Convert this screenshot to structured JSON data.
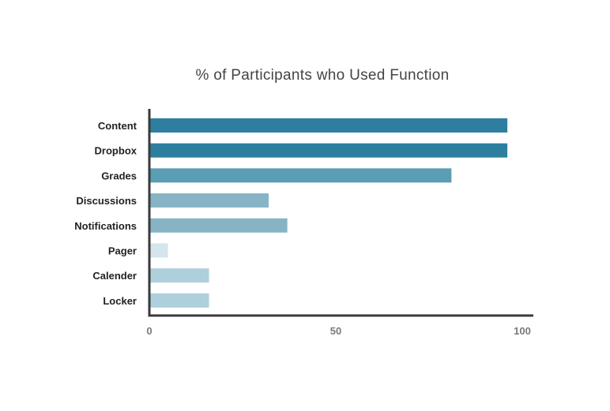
{
  "chart_data": {
    "type": "bar",
    "orientation": "horizontal",
    "title": "% of Participants who Used Function",
    "xlabel": "",
    "ylabel": "",
    "categories": [
      "Content",
      "Dropbox",
      "Grades",
      "Discussions",
      "Notifications",
      "Pager",
      "Calender",
      "Locker"
    ],
    "values": [
      96,
      96,
      81,
      32,
      37,
      5,
      16,
      16
    ],
    "bar_colors": [
      "#2e7f9f",
      "#2e7f9f",
      "#5a9db4",
      "#86b4c5",
      "#86b4c5",
      "#d4e5ec",
      "#aecfdc",
      "#aecfdc"
    ],
    "xlim": [
      0,
      100
    ],
    "xticks": [
      0,
      50,
      100
    ],
    "xtick_labels": [
      "0",
      "50",
      "100"
    ],
    "grid": false,
    "legend": "none",
    "axis_color": "#3a3a3a"
  }
}
